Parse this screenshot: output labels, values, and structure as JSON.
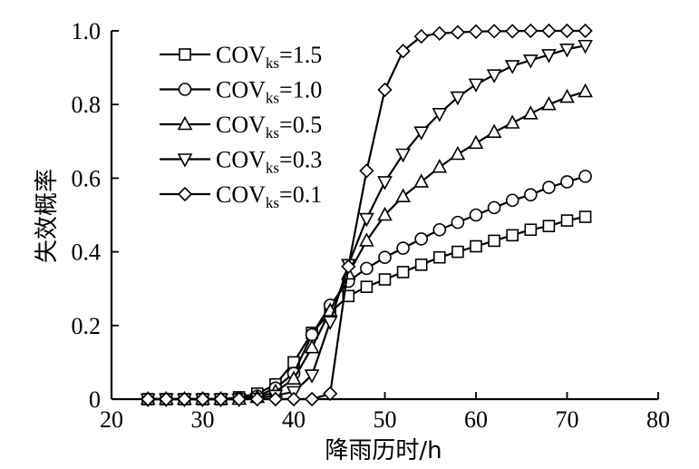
{
  "chart_data": {
    "type": "line",
    "title": "",
    "xlabel": "降雨历时/h",
    "ylabel": "失效概率",
    "xlim": [
      20,
      80
    ],
    "ylim": [
      0,
      1.0
    ],
    "x_ticks": [
      "20",
      "30",
      "40",
      "50",
      "60",
      "70",
      "80"
    ],
    "y_ticks": [
      "0",
      "0.2",
      "0.4",
      "0.6",
      "0.8",
      "1.0"
    ],
    "x_tick_values": [
      20,
      30,
      40,
      50,
      60,
      70,
      80
    ],
    "y_tick_values": [
      0,
      0.2,
      0.4,
      0.6,
      0.8,
      1.0
    ],
    "legend_position": "top-left",
    "x": [
      24,
      26,
      28,
      30,
      32,
      34,
      36,
      38,
      40,
      42,
      44,
      46,
      48,
      50,
      52,
      54,
      56,
      58,
      60,
      62,
      64,
      66,
      68,
      70,
      72
    ],
    "series": [
      {
        "legend_main": "COV",
        "legend_sub": "ks",
        "legend_value": "=1.5",
        "marker": "square",
        "values": [
          0,
          0,
          0,
          0,
          0,
          0.005,
          0.015,
          0.04,
          0.1,
          0.18,
          0.235,
          0.28,
          0.305,
          0.325,
          0.345,
          0.365,
          0.385,
          0.4,
          0.415,
          0.43,
          0.445,
          0.46,
          0.47,
          0.485,
          0.495
        ]
      },
      {
        "legend_main": "COV",
        "legend_sub": "ks",
        "legend_value": "=1.0",
        "marker": "circle",
        "values": [
          0,
          0,
          0,
          0,
          0,
          0.002,
          0.008,
          0.03,
          0.07,
          0.175,
          0.255,
          0.32,
          0.355,
          0.385,
          0.41,
          0.435,
          0.46,
          0.48,
          0.5,
          0.52,
          0.54,
          0.555,
          0.575,
          0.59,
          0.605
        ]
      },
      {
        "legend_main": "COV",
        "legend_sub": "ks",
        "legend_value": "=0.5",
        "marker": "triangle-up",
        "values": [
          0,
          0,
          0,
          0,
          0,
          0,
          0.005,
          0.02,
          0.055,
          0.14,
          0.24,
          0.34,
          0.43,
          0.5,
          0.55,
          0.59,
          0.63,
          0.665,
          0.695,
          0.725,
          0.75,
          0.775,
          0.8,
          0.82,
          0.835
        ]
      },
      {
        "legend_main": "COV",
        "legend_sub": "ks",
        "legend_value": "=0.3",
        "marker": "triangle-down",
        "values": [
          0,
          0,
          0,
          0,
          0,
          0,
          0.002,
          0.01,
          0.02,
          0.065,
          0.21,
          0.365,
          0.49,
          0.59,
          0.665,
          0.725,
          0.775,
          0.82,
          0.855,
          0.88,
          0.905,
          0.92,
          0.935,
          0.95,
          0.96
        ]
      },
      {
        "legend_main": "COV",
        "legend_sub": "ks",
        "legend_value": "=0.1",
        "marker": "diamond",
        "values": [
          0,
          0,
          0,
          0,
          0,
          0,
          0,
          0,
          0,
          0,
          0.015,
          0.36,
          0.62,
          0.84,
          0.945,
          0.985,
          0.993,
          0.996,
          0.998,
          0.999,
          0.999,
          1.0,
          1.0,
          1.0,
          1.0
        ]
      }
    ]
  }
}
